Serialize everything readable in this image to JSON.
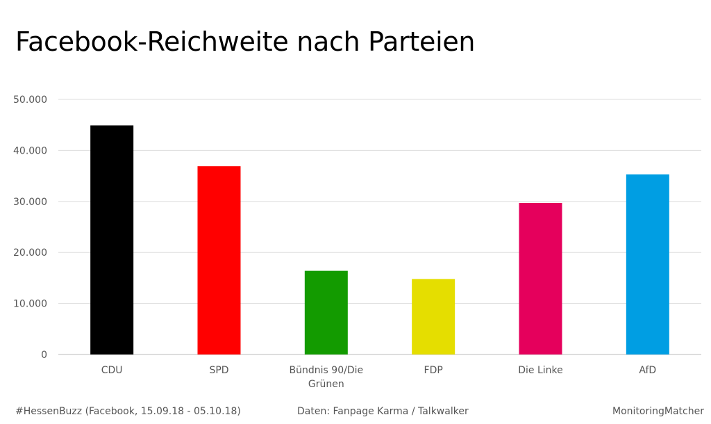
{
  "chart_data": {
    "type": "bar",
    "title": "Facebook-Reichweite nach Parteien",
    "categories": [
      "CDU",
      "SPD",
      "Bündnis 90/Die Grünen",
      "FDP",
      "Die Linke",
      "AfD"
    ],
    "category_lines": [
      [
        "CDU"
      ],
      [
        "SPD"
      ],
      [
        "Bündnis 90/Die",
        "Grünen"
      ],
      [
        "FDP"
      ],
      [
        "Die Linke"
      ],
      [
        "AfD"
      ]
    ],
    "values": [
      44900,
      36900,
      16400,
      14800,
      29700,
      35300
    ],
    "colors": [
      "#000000",
      "#ff0000",
      "#139b00",
      "#e5de00",
      "#e5005c",
      "#009ee3"
    ],
    "ylim": [
      0,
      50000
    ],
    "yticks": [
      0,
      10000,
      20000,
      30000,
      40000,
      50000
    ],
    "ytick_labels": [
      "0",
      "10.000",
      "20.000",
      "30.000",
      "40.000",
      "50.000"
    ],
    "xlabel": "",
    "ylabel": "",
    "grid": true,
    "legend": "none"
  },
  "footer": {
    "left": "#HessenBuzz (Facebook, 15.09.18 - 05.10.18)",
    "center": "Daten: Fanpage Karma / Talkwalker",
    "right": "MonitoringMatcher"
  }
}
